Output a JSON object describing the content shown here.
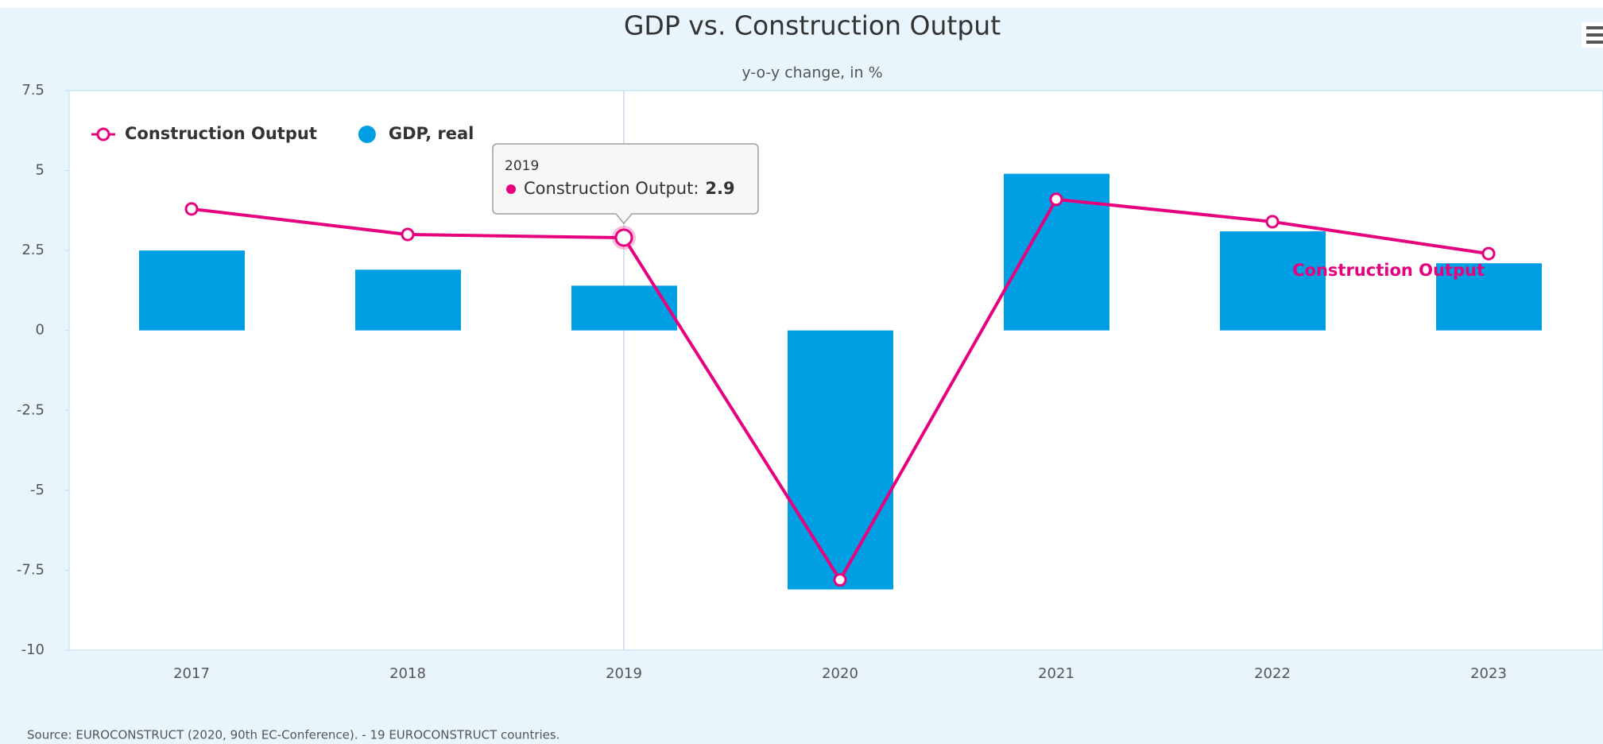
{
  "chart_data": {
    "type": "bar_line",
    "title": "GDP vs. Construction Output",
    "subtitle": "y-o-y change, in %",
    "source": "Source: EUROCONSTRUCT (2020, 90th EC-Conference). - 19 EUROCONSTRUCT countries.",
    "categories": [
      "2017",
      "2018",
      "2019",
      "2020",
      "2021",
      "2022",
      "2023"
    ],
    "series": [
      {
        "name": "Construction Output",
        "type": "line",
        "color": "#e6007e",
        "values": [
          3.8,
          3.0,
          2.9,
          -7.8,
          4.1,
          3.4,
          2.4
        ]
      },
      {
        "name": "GDP, real",
        "type": "bar",
        "color": "#009fe3",
        "values": [
          2.5,
          1.9,
          1.4,
          -8.1,
          4.9,
          3.1,
          2.1
        ]
      }
    ],
    "ylim": [
      -10,
      7.5
    ],
    "yticks": [
      7.5,
      5,
      2.5,
      0,
      -2.5,
      -5,
      -7.5,
      -10
    ],
    "legend": "top-left",
    "tooltip": {
      "label": "Construction Output:"
    }
  }
}
